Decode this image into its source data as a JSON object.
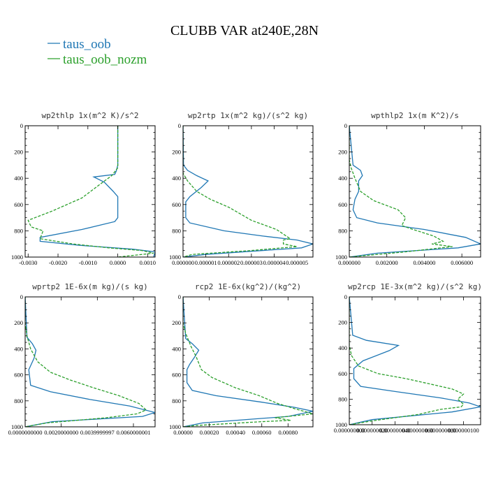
{
  "figure": {
    "title": "CLUBB VAR at240E,28N",
    "legend": [
      {
        "label": "taus_oob",
        "color": "#1f77b4",
        "dash": "solid"
      },
      {
        "label": "taus_oob_nozm",
        "color": "#2ca02c",
        "dash": "dashed"
      }
    ]
  },
  "chart_data": [
    {
      "type": "line",
      "title": "wp2thlp   1x(m^2 K)/s^2",
      "ylim": [
        1000,
        0
      ],
      "xlim": [
        -0.0031,
        0.00125
      ],
      "yticks": [
        0,
        200,
        400,
        600,
        800,
        1000
      ],
      "xticks": [
        {
          "v": -0.003,
          "label": "-0.0030"
        },
        {
          "v": -0.002,
          "label": "-0.0020"
        },
        {
          "v": -0.001,
          "label": "-0.0010"
        },
        {
          "v": 0.0,
          "label": "0.0000"
        },
        {
          "v": 0.001,
          "label": "0.0010"
        }
      ],
      "series": [
        {
          "name": "taus_oob",
          "x": [
            0,
            0,
            -5e-05,
            -0.0001,
            -0.0008,
            -0.00045,
            -0.00015,
            0,
            0,
            -0.0001,
            -0.0012,
            -0.0026,
            -0.0026,
            -0.0013,
            0.0005,
            0.00125,
            0.0012
          ],
          "y": [
            0,
            300,
            345,
            370,
            390,
            430,
            500,
            540,
            700,
            730,
            790,
            850,
            880,
            910,
            940,
            960,
            1000
          ]
        },
        {
          "name": "taus_oob_nozm",
          "x": [
            0,
            0,
            -0.0001,
            -0.0002,
            -0.0005,
            -0.0012,
            -0.0022,
            -0.003,
            -0.0029,
            -0.0025,
            -0.0026,
            -0.0015,
            -0.0003,
            0.0008,
            0.0012,
            0.0
          ],
          "y": [
            0,
            320,
            350,
            380,
            430,
            550,
            650,
            720,
            770,
            800,
            860,
            900,
            930,
            950,
            970,
            1000
          ]
        }
      ]
    },
    {
      "type": "line",
      "title": "wp2rtp   1x(m^2 kg)/(s^2 kg)",
      "ylim": [
        1000,
        0
      ],
      "xlim": [
        0,
        5.7e-06
      ],
      "yticks": [
        0,
        200,
        400,
        600,
        800,
        1000
      ],
      "xticks": [
        {
          "v": 0,
          "label": "0.000000"
        },
        {
          "v": 1e-06,
          "label": "0.000001"
        },
        {
          "v": 2e-06,
          "label": "0.000002"
        },
        {
          "v": 3e-06,
          "label": "0.000003"
        },
        {
          "v": 4e-06,
          "label": "0.000004"
        },
        {
          "v": 5e-06,
          "label": "0.000005"
        }
      ],
      "series": [
        {
          "name": "taus_oob",
          "x": [
            0,
            2e-08,
            2e-07,
            6e-07,
            1.1e-06,
            8e-07,
            3e-07,
            1.2e-07,
            1.2e-07,
            3e-07,
            1.8e-06,
            3.5e-06,
            5e-06,
            5.7e-06,
            5.2e-06,
            1e-06,
            0
          ],
          "y": [
            0,
            300,
            340,
            380,
            420,
            470,
            540,
            580,
            700,
            740,
            800,
            840,
            870,
            900,
            930,
            980,
            1000
          ]
        },
        {
          "name": "taus_oob_nozm",
          "x": [
            0,
            0,
            2e-07,
            6e-07,
            1.2e-06,
            2e-06,
            2.6e-06,
            3e-06,
            4.1e-06,
            4.7e-06,
            4.4e-06,
            4.4e-06,
            5e-06,
            3e-06,
            4e-07,
            0
          ],
          "y": [
            0,
            360,
            420,
            500,
            560,
            620,
            680,
            720,
            790,
            860,
            870,
            900,
            920,
            950,
            980,
            1000
          ]
        }
      ]
    },
    {
      "type": "line",
      "title": "wpthlp2   1x(m K^2)/s",
      "ylim": [
        1000,
        0
      ],
      "xlim": [
        0,
        0.007
      ],
      "yticks": [
        0,
        200,
        400,
        600,
        800,
        1000
      ],
      "xticks": [
        {
          "v": 0,
          "label": "0.000000"
        },
        {
          "v": 0.002,
          "label": "0.002000"
        },
        {
          "v": 0.004,
          "label": "0.004000"
        },
        {
          "v": 0.006,
          "label": "0.006000"
        }
      ],
      "series": [
        {
          "name": "taus_oob",
          "x": [
            0,
            0.0002,
            0.0006,
            0.0007,
            0.0005,
            0.0005,
            0.0003,
            0.0002,
            0.0004,
            0.0015,
            0.004,
            0.0062,
            0.007,
            0.0058,
            0.0015,
            0
          ],
          "y": [
            0,
            300,
            340,
            380,
            420,
            500,
            560,
            640,
            700,
            740,
            790,
            850,
            900,
            930,
            970,
            1000
          ]
        },
        {
          "name": "taus_oob_nozm",
          "x": [
            0,
            0,
            0.0001,
            0.0003,
            0.0006,
            0.0013,
            0.0026,
            0.003,
            0.0028,
            0.0034,
            0.0045,
            0.005,
            0.0044,
            0.0055,
            0.003,
            0
          ],
          "y": [
            0,
            260,
            320,
            400,
            500,
            570,
            640,
            700,
            760,
            790,
            840,
            880,
            900,
            920,
            960,
            1000
          ]
        }
      ]
    },
    {
      "type": "line",
      "title": "wprtp2   1E-6x(m kg)/(s kg)",
      "ylim": [
        1000,
        0
      ],
      "xlim": [
        0,
        0.0072
      ],
      "yticks": [
        0,
        200,
        400,
        600,
        800,
        1000
      ],
      "xticks": [
        {
          "v": 0,
          "label": "0.0000000000"
        },
        {
          "v": 0.002,
          "label": "0.0020000000"
        },
        {
          "v": 0.004,
          "label": "0.0039999997"
        },
        {
          "v": 0.006,
          "label": "0.0060000001"
        }
      ],
      "series": [
        {
          "name": "taus_oob",
          "x": [
            0,
            0.0001,
            0.0004,
            0.0006,
            0.0005,
            0.0003,
            0.0002,
            0.0003,
            0.0014,
            0.0036,
            0.0058,
            0.0072,
            0.0065,
            0.0015,
            0
          ],
          "y": [
            0,
            310,
            360,
            410,
            470,
            530,
            560,
            680,
            730,
            790,
            840,
            890,
            920,
            960,
            1000
          ]
        },
        {
          "name": "taus_oob_nozm",
          "x": [
            0,
            0,
            0.0001,
            0.0003,
            0.0007,
            0.0014,
            0.0025,
            0.0038,
            0.0052,
            0.0063,
            0.0067,
            0.0062,
            0.0045,
            0.0012,
            0
          ],
          "y": [
            0,
            200,
            300,
            400,
            500,
            580,
            640,
            700,
            760,
            820,
            870,
            900,
            930,
            970,
            1000
          ]
        }
      ]
    },
    {
      "type": "line",
      "title": "rcp2   1E-6x(kg^2)/(kg^2)",
      "ylim": [
        1000,
        0
      ],
      "xlim": [
        0,
        0.00099
      ],
      "yticks": [
        0,
        200,
        400,
        600,
        800,
        1000
      ],
      "xticks": [
        {
          "v": 0,
          "label": "0.00000"
        },
        {
          "v": 0.0002,
          "label": "0.00020"
        },
        {
          "v": 0.0004,
          "label": "0.00040"
        },
        {
          "v": 0.0006,
          "label": "0.00060"
        },
        {
          "v": 0.0008,
          "label": "0.00080"
        }
      ],
      "series": [
        {
          "name": "taus_oob",
          "x": [
            0,
            2e-05,
            7e-05,
            0.00012,
            9e-05,
            5e-05,
            3e-05,
            3e-05,
            7e-05,
            0.00025,
            0.0006,
            0.00085,
            0.00099,
            0.0008,
            0.00015,
            0
          ],
          "y": [
            0,
            320,
            360,
            410,
            460,
            520,
            560,
            660,
            720,
            760,
            810,
            850,
            880,
            920,
            970,
            1000
          ]
        },
        {
          "name": "taus_oob_nozm",
          "x": [
            0,
            0,
            2e-05,
            6e-05,
            0.0001,
            0.00014,
            0.00022,
            0.0004,
            0.00058,
            0.00072,
            0.00085,
            0.00099,
            0.0007,
            0.00082,
            0.0006,
            0.0001,
            0
          ],
          "y": [
            0,
            200,
            280,
            380,
            460,
            560,
            620,
            700,
            760,
            820,
            860,
            900,
            930,
            950,
            960,
            990,
            1000
          ]
        }
      ]
    },
    {
      "type": "line",
      "title": "wp2rcp   1E-3x(m^2 kg)/(s^2 kg)",
      "ylim": [
        1000,
        0
      ],
      "xlim": [
        0,
        1.15e-07
      ],
      "yticks": [
        0,
        200,
        400,
        600,
        800,
        1000
      ],
      "xticks": [
        {
          "v": 0,
          "label": "0.000000000"
        },
        {
          "v": 2e-08,
          "label": "0.000000020"
        },
        {
          "v": 4e-08,
          "label": "0.000000040"
        },
        {
          "v": 6e-08,
          "label": "0.000000060"
        },
        {
          "v": 8e-08,
          "label": "0.000000080"
        },
        {
          "v": 1e-07,
          "label": "0.000000100"
        }
      ],
      "series": [
        {
          "name": "taus_oob",
          "x": [
            0,
            3e-09,
            1.5e-08,
            4.3e-08,
            3.5e-08,
            1.2e-08,
            4e-09,
            4e-09,
            1e-08,
            4e-08,
            8e-08,
            1.05e-07,
            1.15e-07,
            9e-08,
            2e-08,
            0
          ],
          "y": [
            0,
            300,
            340,
            380,
            420,
            500,
            560,
            640,
            700,
            740,
            790,
            830,
            860,
            900,
            960,
            1000
          ]
        },
        {
          "name": "taus_oob_nozm",
          "x": [
            0,
            0,
            2e-09,
            8e-09,
            2.5e-08,
            5e-08,
            7e-08,
            9e-08,
            1e-07,
            9.5e-08,
            1e-07,
            9.8e-08,
            8e-08,
            6e-08,
            2e-08,
            0
          ],
          "y": [
            0,
            380,
            460,
            540,
            600,
            640,
            680,
            720,
            760,
            800,
            840,
            860,
            880,
            920,
            970,
            1000
          ]
        }
      ]
    }
  ]
}
